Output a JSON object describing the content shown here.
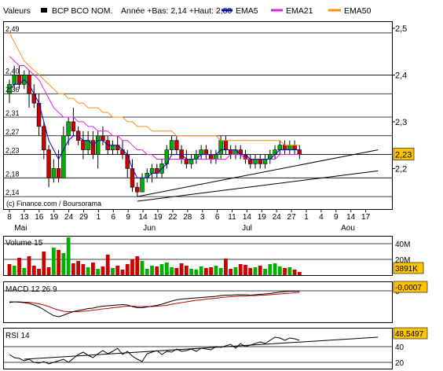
{
  "header": {
    "valeurs_label": "Valeurs",
    "instrument": "BCP BCO NOM.",
    "range_text": "Année +Bas: 2,14 +Haut: 2,80",
    "ema5_label": "EMA5",
    "ema21_label": "EMA21",
    "ema50_label": "EMA50",
    "colors": {
      "ema5": "#0000cc",
      "ema21": "#e020e0",
      "ema50": "#ff8c1a",
      "up": "#00b000",
      "down": "#cc0000"
    }
  },
  "watermark": "(c) Finance.com / Boursorama",
  "chart_data": [
    {
      "type": "candlestick",
      "name": "price",
      "left_ticks": [
        "2,49",
        "2,40",
        "2,36",
        "2,31",
        "2,27",
        "2,23",
        "2,18",
        "2,14"
      ],
      "left_tick_values": [
        2.49,
        2.4,
        2.36,
        2.31,
        2.27,
        2.23,
        2.18,
        2.14
      ],
      "right_ticks": [
        "2,5",
        "2,4",
        "2,3",
        "2,2"
      ],
      "right_tick_values": [
        2.5,
        2.4,
        2.3,
        2.2
      ],
      "ylim": [
        2.12,
        2.51
      ],
      "last_price_label": "2,23",
      "last_price": 2.23,
      "x_day_labels": [
        "8",
        "13",
        "16",
        "19",
        "24",
        "29",
        "1",
        "6",
        "9",
        "14",
        "19",
        "22",
        "28",
        "3",
        "6",
        "11",
        "14",
        "19",
        "24",
        "27",
        "1",
        "4",
        "9",
        "14",
        "17"
      ],
      "x_months": [
        {
          "label": "Mai",
          "day_index": 1
        },
        {
          "label": "Jun",
          "day_index": 27
        },
        {
          "label": "Jul",
          "day_index": 47
        },
        {
          "label": "Aou",
          "day_index": 67
        }
      ],
      "n_slots": 75,
      "candles": [
        {
          "o": 2.36,
          "h": 2.39,
          "l": 2.34,
          "c": 2.38
        },
        {
          "o": 2.38,
          "h": 2.42,
          "l": 2.37,
          "c": 2.4
        },
        {
          "o": 2.4,
          "h": 2.42,
          "l": 2.37,
          "c": 2.38
        },
        {
          "o": 2.38,
          "h": 2.41,
          "l": 2.37,
          "c": 2.4
        },
        {
          "o": 2.4,
          "h": 2.41,
          "l": 2.33,
          "c": 2.36
        },
        {
          "o": 2.36,
          "h": 2.38,
          "l": 2.33,
          "c": 2.34
        },
        {
          "o": 2.34,
          "h": 2.36,
          "l": 2.27,
          "c": 2.29
        },
        {
          "o": 2.29,
          "h": 2.3,
          "l": 2.22,
          "c": 2.24
        },
        {
          "o": 2.24,
          "h": 2.25,
          "l": 2.16,
          "c": 2.18
        },
        {
          "o": 2.18,
          "h": 2.22,
          "l": 2.17,
          "c": 2.2
        },
        {
          "o": 2.2,
          "h": 2.24,
          "l": 2.17,
          "c": 2.18
        },
        {
          "o": 2.18,
          "h": 2.29,
          "l": 2.18,
          "c": 2.27
        },
        {
          "o": 2.27,
          "h": 2.31,
          "l": 2.25,
          "c": 2.3
        },
        {
          "o": 2.3,
          "h": 2.33,
          "l": 2.27,
          "c": 2.28
        },
        {
          "o": 2.28,
          "h": 2.29,
          "l": 2.25,
          "c": 2.26
        },
        {
          "o": 2.26,
          "h": 2.28,
          "l": 2.22,
          "c": 2.24
        },
        {
          "o": 2.24,
          "h": 2.28,
          "l": 2.23,
          "c": 2.26
        },
        {
          "o": 2.26,
          "h": 2.28,
          "l": 2.22,
          "c": 2.23
        },
        {
          "o": 2.23,
          "h": 2.28,
          "l": 2.2,
          "c": 2.27
        },
        {
          "o": 2.27,
          "h": 2.29,
          "l": 2.25,
          "c": 2.26
        },
        {
          "o": 2.26,
          "h": 2.27,
          "l": 2.23,
          "c": 2.24
        },
        {
          "o": 2.24,
          "h": 2.26,
          "l": 2.23,
          "c": 2.25
        },
        {
          "o": 2.25,
          "h": 2.27,
          "l": 2.23,
          "c": 2.24
        },
        {
          "o": 2.24,
          "h": 2.26,
          "l": 2.22,
          "c": 2.23
        },
        {
          "o": 2.23,
          "h": 2.24,
          "l": 2.18,
          "c": 2.2
        },
        {
          "o": 2.2,
          "h": 2.22,
          "l": 2.15,
          "c": 2.16
        },
        {
          "o": 2.16,
          "h": 2.17,
          "l": 2.14,
          "c": 2.15
        },
        {
          "o": 2.15,
          "h": 2.19,
          "l": 2.15,
          "c": 2.18
        },
        {
          "o": 2.18,
          "h": 2.2,
          "l": 2.17,
          "c": 2.19
        },
        {
          "o": 2.19,
          "h": 2.21,
          "l": 2.17,
          "c": 2.2
        },
        {
          "o": 2.2,
          "h": 2.21,
          "l": 2.18,
          "c": 2.19
        },
        {
          "o": 2.19,
          "h": 2.22,
          "l": 2.18,
          "c": 2.21
        },
        {
          "o": 2.21,
          "h": 2.25,
          "l": 2.2,
          "c": 2.24
        },
        {
          "o": 2.24,
          "h": 2.27,
          "l": 2.23,
          "c": 2.26
        },
        {
          "o": 2.26,
          "h": 2.27,
          "l": 2.23,
          "c": 2.24
        },
        {
          "o": 2.24,
          "h": 2.25,
          "l": 2.21,
          "c": 2.22
        },
        {
          "o": 2.22,
          "h": 2.24,
          "l": 2.2,
          "c": 2.21
        },
        {
          "o": 2.21,
          "h": 2.23,
          "l": 2.2,
          "c": 2.22
        },
        {
          "o": 2.22,
          "h": 2.24,
          "l": 2.21,
          "c": 2.23
        },
        {
          "o": 2.23,
          "h": 2.25,
          "l": 2.22,
          "c": 2.24
        },
        {
          "o": 2.24,
          "h": 2.25,
          "l": 2.22,
          "c": 2.23
        },
        {
          "o": 2.23,
          "h": 2.24,
          "l": 2.21,
          "c": 2.22
        },
        {
          "o": 2.22,
          "h": 2.24,
          "l": 2.21,
          "c": 2.23
        },
        {
          "o": 2.23,
          "h": 2.27,
          "l": 2.22,
          "c": 2.26
        },
        {
          "o": 2.26,
          "h": 2.27,
          "l": 2.23,
          "c": 2.24
        },
        {
          "o": 2.24,
          "h": 2.25,
          "l": 2.22,
          "c": 2.23
        },
        {
          "o": 2.23,
          "h": 2.25,
          "l": 2.22,
          "c": 2.24
        },
        {
          "o": 2.24,
          "h": 2.25,
          "l": 2.22,
          "c": 2.23
        },
        {
          "o": 2.23,
          "h": 2.24,
          "l": 2.21,
          "c": 2.22
        },
        {
          "o": 2.22,
          "h": 2.23,
          "l": 2.2,
          "c": 2.21
        },
        {
          "o": 2.21,
          "h": 2.23,
          "l": 2.2,
          "c": 2.22
        },
        {
          "o": 2.22,
          "h": 2.23,
          "l": 2.2,
          "c": 2.21
        },
        {
          "o": 2.21,
          "h": 2.23,
          "l": 2.2,
          "c": 2.22
        },
        {
          "o": 2.22,
          "h": 2.24,
          "l": 2.21,
          "c": 2.23
        },
        {
          "o": 2.23,
          "h": 2.25,
          "l": 2.22,
          "c": 2.24
        },
        {
          "o": 2.24,
          "h": 2.26,
          "l": 2.23,
          "c": 2.25
        },
        {
          "o": 2.25,
          "h": 2.26,
          "l": 2.23,
          "c": 2.24
        },
        {
          "o": 2.24,
          "h": 2.26,
          "l": 2.23,
          "c": 2.25
        },
        {
          "o": 2.25,
          "h": 2.26,
          "l": 2.23,
          "c": 2.24
        },
        {
          "o": 2.24,
          "h": 2.25,
          "l": 2.22,
          "c": 2.23
        }
      ],
      "ema5": [
        2.37,
        2.38,
        2.38,
        2.39,
        2.38,
        2.36,
        2.34,
        2.3,
        2.26,
        2.24,
        2.22,
        2.24,
        2.26,
        2.27,
        2.27,
        2.26,
        2.26,
        2.25,
        2.26,
        2.26,
        2.25,
        2.25,
        2.25,
        2.24,
        2.23,
        2.2,
        2.18,
        2.18,
        2.18,
        2.19,
        2.19,
        2.2,
        2.21,
        2.23,
        2.23,
        2.23,
        2.22,
        2.22,
        2.22,
        2.23,
        2.23,
        2.23,
        2.23,
        2.24,
        2.24,
        2.24,
        2.24,
        2.23,
        2.23,
        2.22,
        2.22,
        2.22,
        2.22,
        2.22,
        2.23,
        2.24,
        2.24,
        2.24,
        2.24,
        2.24
      ],
      "ema21": [
        2.44,
        2.43,
        2.42,
        2.42,
        2.41,
        2.4,
        2.39,
        2.37,
        2.35,
        2.33,
        2.32,
        2.31,
        2.31,
        2.31,
        2.3,
        2.3,
        2.29,
        2.29,
        2.28,
        2.28,
        2.28,
        2.27,
        2.27,
        2.26,
        2.26,
        2.25,
        2.24,
        2.24,
        2.23,
        2.23,
        2.22,
        2.22,
        2.22,
        2.22,
        2.22,
        2.22,
        2.22,
        2.22,
        2.22,
        2.22,
        2.22,
        2.22,
        2.22,
        2.22,
        2.22,
        2.23,
        2.23,
        2.23,
        2.22,
        2.22,
        2.22,
        2.22,
        2.22,
        2.22,
        2.22,
        2.23,
        2.23,
        2.23,
        2.23,
        2.23
      ],
      "ema50": [
        2.49,
        2.47,
        2.45,
        2.43,
        2.42,
        2.41,
        2.4,
        2.39,
        2.38,
        2.37,
        2.36,
        2.36,
        2.35,
        2.35,
        2.34,
        2.34,
        2.33,
        2.33,
        2.33,
        2.32,
        2.32,
        2.31,
        2.31,
        2.31,
        2.3,
        2.3,
        2.29,
        2.29,
        2.29,
        2.28,
        2.28,
        2.28,
        2.28,
        2.28,
        2.27,
        2.27,
        2.27,
        2.27,
        2.27,
        2.27,
        2.27,
        2.27,
        2.27,
        2.26,
        2.26,
        2.26,
        2.26,
        2.26,
        2.26,
        2.26,
        2.26,
        2.26,
        2.26,
        2.26,
        2.26,
        2.26,
        2.25,
        2.25,
        2.25,
        2.25
      ],
      "support_line": {
        "from": [
          26,
          2.14
        ],
        "to": [
          74,
          2.24
        ]
      },
      "support_line2": {
        "from": [
          26,
          2.13
        ],
        "to": [
          74,
          2.195
        ]
      }
    },
    {
      "type": "bar",
      "name": "volume",
      "title": "Volume 15",
      "ticks": [
        "40M",
        "20M"
      ],
      "tick_values": [
        40,
        20
      ],
      "ylim": [
        0,
        48
      ],
      "last_value_label": "3891K",
      "values": [
        14,
        12,
        22,
        9,
        24,
        12,
        8,
        30,
        10,
        35,
        32,
        28,
        48,
        15,
        18,
        14,
        10,
        16,
        8,
        11,
        26,
        9,
        12,
        7,
        14,
        20,
        24,
        18,
        8,
        12,
        11,
        14,
        16,
        10,
        9,
        15,
        12,
        8,
        7,
        11,
        9,
        10,
        12,
        9,
        21,
        8,
        10,
        14,
        13,
        9,
        10,
        12,
        8,
        14,
        15,
        11,
        9,
        10,
        7,
        4
      ],
      "directions": [
        "d",
        "u",
        "d",
        "u",
        "d",
        "d",
        "d",
        "d",
        "d",
        "u",
        "d",
        "u",
        "u",
        "d",
        "d",
        "d",
        "u",
        "d",
        "u",
        "d",
        "d",
        "u",
        "d",
        "d",
        "d",
        "d",
        "d",
        "u",
        "u",
        "u",
        "d",
        "u",
        "u",
        "u",
        "d",
        "d",
        "d",
        "u",
        "u",
        "u",
        "d",
        "d",
        "u",
        "u",
        "d",
        "d",
        "u",
        "d",
        "d",
        "d",
        "u",
        "d",
        "u",
        "u",
        "u",
        "u",
        "d",
        "u",
        "d",
        "d"
      ]
    },
    {
      "type": "line",
      "name": "macd",
      "title": "MACD 12 26 9",
      "ticks": [
        "0"
      ],
      "tick_values": [
        0
      ],
      "ylim": [
        -0.08,
        0.02
      ],
      "last_value_label": "-0,0007",
      "macd": [
        -0.03,
        -0.028,
        -0.029,
        -0.03,
        -0.032,
        -0.036,
        -0.041,
        -0.048,
        -0.056,
        -0.063,
        -0.066,
        -0.062,
        -0.057,
        -0.053,
        -0.05,
        -0.048,
        -0.045,
        -0.044,
        -0.041,
        -0.039,
        -0.038,
        -0.037,
        -0.036,
        -0.035,
        -0.036,
        -0.04,
        -0.043,
        -0.043,
        -0.041,
        -0.039,
        -0.037,
        -0.034,
        -0.03,
        -0.026,
        -0.023,
        -0.021,
        -0.02,
        -0.019,
        -0.018,
        -0.017,
        -0.016,
        -0.015,
        -0.014,
        -0.012,
        -0.011,
        -0.011,
        -0.01,
        -0.01,
        -0.01,
        -0.011,
        -0.01,
        -0.009,
        -0.008,
        -0.007,
        -0.005,
        -0.003,
        -0.002,
        -0.001,
        -0.001,
        -0.001
      ],
      "signal": [
        -0.028,
        -0.028,
        -0.028,
        -0.029,
        -0.029,
        -0.031,
        -0.033,
        -0.036,
        -0.04,
        -0.045,
        -0.049,
        -0.052,
        -0.053,
        -0.053,
        -0.053,
        -0.052,
        -0.051,
        -0.049,
        -0.048,
        -0.046,
        -0.045,
        -0.043,
        -0.042,
        -0.04,
        -0.039,
        -0.039,
        -0.04,
        -0.04,
        -0.04,
        -0.04,
        -0.039,
        -0.038,
        -0.037,
        -0.034,
        -0.032,
        -0.03,
        -0.028,
        -0.026,
        -0.024,
        -0.023,
        -0.021,
        -0.02,
        -0.019,
        -0.017,
        -0.016,
        -0.015,
        -0.014,
        -0.013,
        -0.013,
        -0.012,
        -0.012,
        -0.011,
        -0.011,
        -0.01,
        -0.009,
        -0.008,
        -0.007,
        -0.006,
        -0.005,
        -0.004
      ]
    },
    {
      "type": "line",
      "name": "rsi",
      "title": "RSI 14",
      "ticks": [
        "40",
        "20"
      ],
      "tick_values": [
        40,
        20
      ],
      "ylim": [
        12,
        62
      ],
      "last_value_label": "48,5497",
      "rsi": [
        30,
        26,
        25,
        22,
        24,
        20,
        19,
        21,
        18,
        20,
        22,
        24,
        20,
        25,
        30,
        33,
        29,
        26,
        31,
        35,
        31,
        34,
        38,
        30,
        34,
        28,
        24,
        21,
        31,
        33,
        35,
        30,
        34,
        33,
        37,
        34,
        35,
        37,
        34,
        38,
        37,
        36,
        40,
        39,
        41,
        43,
        38,
        44,
        40,
        42,
        44,
        46,
        44,
        48,
        52,
        51,
        48,
        51,
        50,
        48
      ],
      "trend_line": {
        "from": [
          3,
          24
        ],
        "to": [
          74,
          52
        ]
      }
    }
  ]
}
